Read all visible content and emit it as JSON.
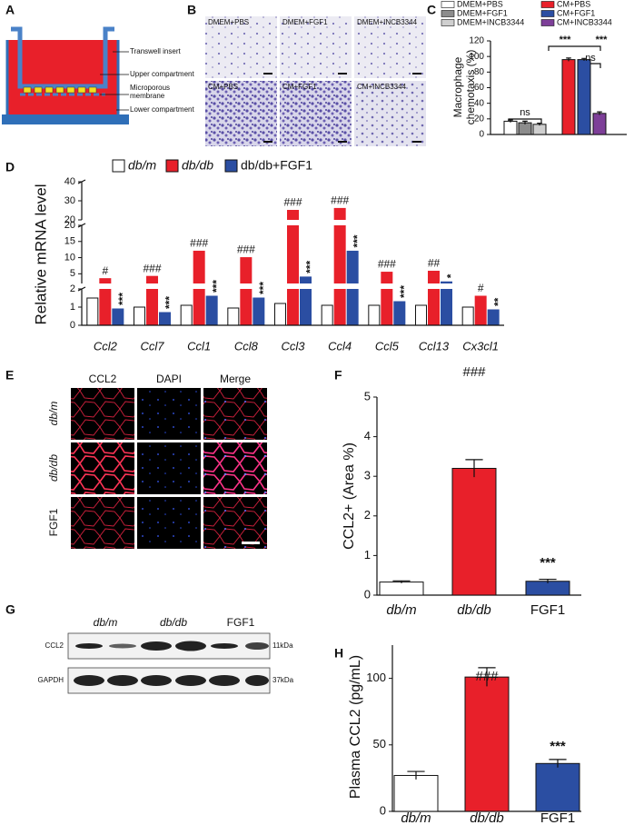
{
  "panel_labels": [
    "A",
    "B",
    "C",
    "D",
    "E",
    "F",
    "G",
    "H"
  ],
  "panel_a": {
    "labels": [
      "Transwell insert",
      "Upper compartment",
      [
        "Microporous",
        "membrane"
      ],
      "Lower compartment"
    ]
  },
  "panel_b": {
    "labels": [
      "DMEM+PBS",
      "DMEM+FGF1",
      "DMEM+INCB3344",
      "CM+PBS",
      "CM+FGF1",
      "CM+INCB3344"
    ]
  },
  "panel_e": {
    "columns": [
      "CCL2",
      "DAPI",
      "Merge"
    ],
    "rows": [
      "db/m",
      "db/db",
      "FGF1"
    ]
  },
  "panel_g": {
    "groups": [
      "db/m",
      "db/db",
      "FGF1"
    ],
    "proteins": [
      "CCL2",
      "GAPDH"
    ],
    "sizes": [
      "11kDa",
      "37kDa"
    ]
  },
  "chart_data": [
    {
      "type": "bar",
      "ylabel": [
        "Macrophage",
        "chemotaxis (%)"
      ],
      "categories": [
        "DMEM+PBS",
        "DMEM+FGF1",
        "DMEM+INCB3344",
        "CM+PBS",
        "CM+FGF1",
        "CM+INCB3344"
      ],
      "colors": [
        "#ffffff",
        "#8c8c8c",
        "#cfcfcf",
        "#e8202a",
        "#2b4ea2",
        "#7d3f98"
      ],
      "values": [
        17,
        15,
        13,
        96,
        96,
        27
      ],
      "errors": [
        1.5,
        2,
        1.5,
        2,
        1.5,
        2
      ],
      "ylim": [
        0,
        120
      ],
      "yticks": [
        0,
        20,
        40,
        60,
        80,
        100,
        120
      ],
      "annotations": [
        "ns",
        "ns",
        "***",
        "***"
      ]
    },
    {
      "type": "grouped_bar_broken",
      "ylabel": "Relative mRNA level",
      "categories": [
        "Ccl2",
        "Ccl7",
        "Ccl1",
        "Ccl8",
        "Ccl3",
        "Ccl4",
        "Ccl5",
        "Ccl13",
        "Cx3cl1"
      ],
      "series": [
        {
          "name": "db/m",
          "color": "#ffffff",
          "values": [
            1.5,
            1.0,
            1.1,
            0.95,
            1.2,
            1.1,
            1.1,
            1.1,
            1.0
          ]
        },
        {
          "name": "db/db",
          "color": "#e8202a",
          "values": [
            3.5,
            4.2,
            12,
            10,
            25,
            26,
            5.5,
            5.8,
            1.6
          ],
          "annotations": [
            "#",
            "###",
            "###",
            "###",
            "###",
            "###",
            "###",
            "##",
            "#"
          ],
          "annotation_color": "#111111"
        },
        {
          "name": "db/db+FGF1",
          "color": "#2b4ea2",
          "values": [
            0.9,
            0.7,
            1.6,
            1.5,
            4,
            12,
            1.3,
            2.5,
            0.85
          ],
          "annotations": [
            "***",
            "***",
            "***",
            "***",
            "***",
            "***",
            "***",
            "*",
            "**"
          ],
          "annotation_color": "#8b3a9c"
        }
      ],
      "ylims": [
        [
          0,
          2
        ],
        [
          2,
          20
        ],
        [
          20,
          40
        ]
      ],
      "yticks": [
        [
          0,
          1,
          2
        ],
        [
          5,
          10,
          15,
          20
        ],
        [
          20,
          30,
          40
        ]
      ]
    },
    {
      "type": "bar",
      "ylabel": "CCL2+ (Area %)",
      "categories": [
        "db/m",
        "db/db",
        "FGF1"
      ],
      "colors": [
        "#ffffff",
        "#e8202a",
        "#2b4ea2"
      ],
      "values": [
        0.33,
        3.2,
        0.35
      ],
      "errors": [
        0.03,
        0.22,
        0.05
      ],
      "ylim": [
        0,
        5
      ],
      "yticks": [
        0,
        1,
        2,
        3,
        4,
        5
      ],
      "annotations": [
        "###",
        "***"
      ]
    },
    {
      "type": "bar",
      "ylabel": "Plasma CCL2 (pg/mL)",
      "categories": [
        "db/m",
        "db/db",
        "FGF1"
      ],
      "colors": [
        "#ffffff",
        "#e8202a",
        "#2b4ea2"
      ],
      "values": [
        27,
        101,
        36
      ],
      "errors": [
        3,
        7,
        3
      ],
      "ylim": [
        0,
        125
      ],
      "yticks": [
        0,
        50,
        100
      ],
      "annotations": [
        "###",
        "***"
      ]
    }
  ]
}
